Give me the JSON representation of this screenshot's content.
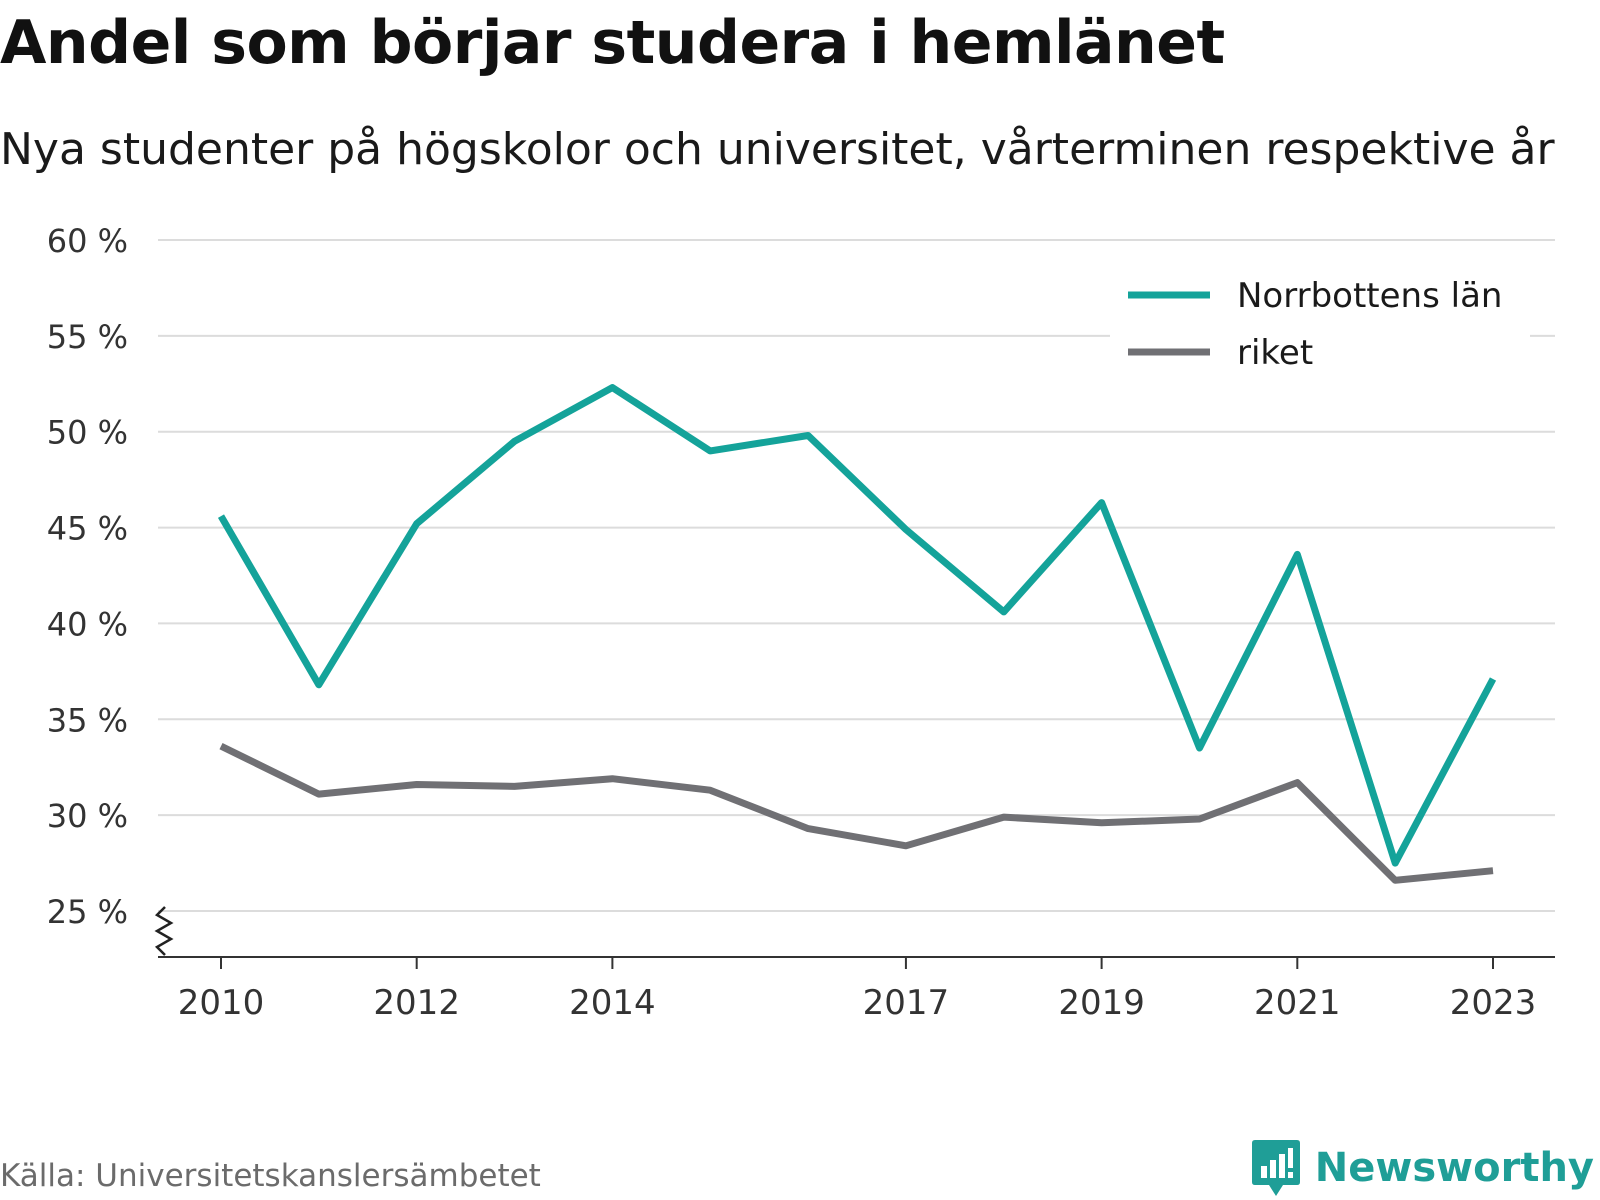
{
  "header": {
    "title": "Andel som börjar studera i hemlänet",
    "subtitle": "Nya studenter på högskolor och universitet, vårterminen respektive år"
  },
  "footer": {
    "source": "Källa: Universitetskanslersämbetet",
    "brand": "Newsworthy",
    "brand_icon": "bar-chart-speech-bubble-icon"
  },
  "colors": {
    "series_norrbotten": "#14a39a",
    "series_riket": "#707074",
    "grid": "#dcdcdc",
    "axis": "#333333",
    "brand": "#1f9e97"
  },
  "chart_data": {
    "type": "line",
    "title": "Andel som börjar studera i hemlänet",
    "subtitle": "Nya studenter på högskolor och universitet, vårterminen respektive år",
    "x": [
      2010,
      2011,
      2012,
      2013,
      2014,
      2015,
      2016,
      2017,
      2018,
      2019,
      2020,
      2021,
      2022,
      2023
    ],
    "x_tick_labels": [
      "2010",
      "2012",
      "2014",
      "2017",
      "2019",
      "2021",
      "2023"
    ],
    "y_tick_values": [
      25,
      30,
      35,
      40,
      45,
      50,
      55,
      60
    ],
    "y_tick_labels": [
      "25 %",
      "30 %",
      "35 %",
      "40 %",
      "45 %",
      "50 %",
      "55 %",
      "60 %"
    ],
    "ylim": [
      25,
      60
    ],
    "y_axis_break": true,
    "grid": true,
    "legend_position": "top-right",
    "series": [
      {
        "name": "Norrbottens län",
        "color": "#14a39a",
        "values": [
          45.6,
          36.8,
          45.2,
          49.5,
          52.3,
          49.0,
          49.8,
          44.9,
          40.6,
          46.3,
          33.5,
          43.6,
          27.5,
          37.1
        ]
      },
      {
        "name": "riket",
        "color": "#707074",
        "values": [
          33.6,
          31.1,
          31.6,
          31.5,
          31.9,
          31.3,
          29.3,
          28.4,
          29.9,
          29.6,
          29.8,
          31.7,
          26.6,
          27.1
        ]
      }
    ]
  }
}
